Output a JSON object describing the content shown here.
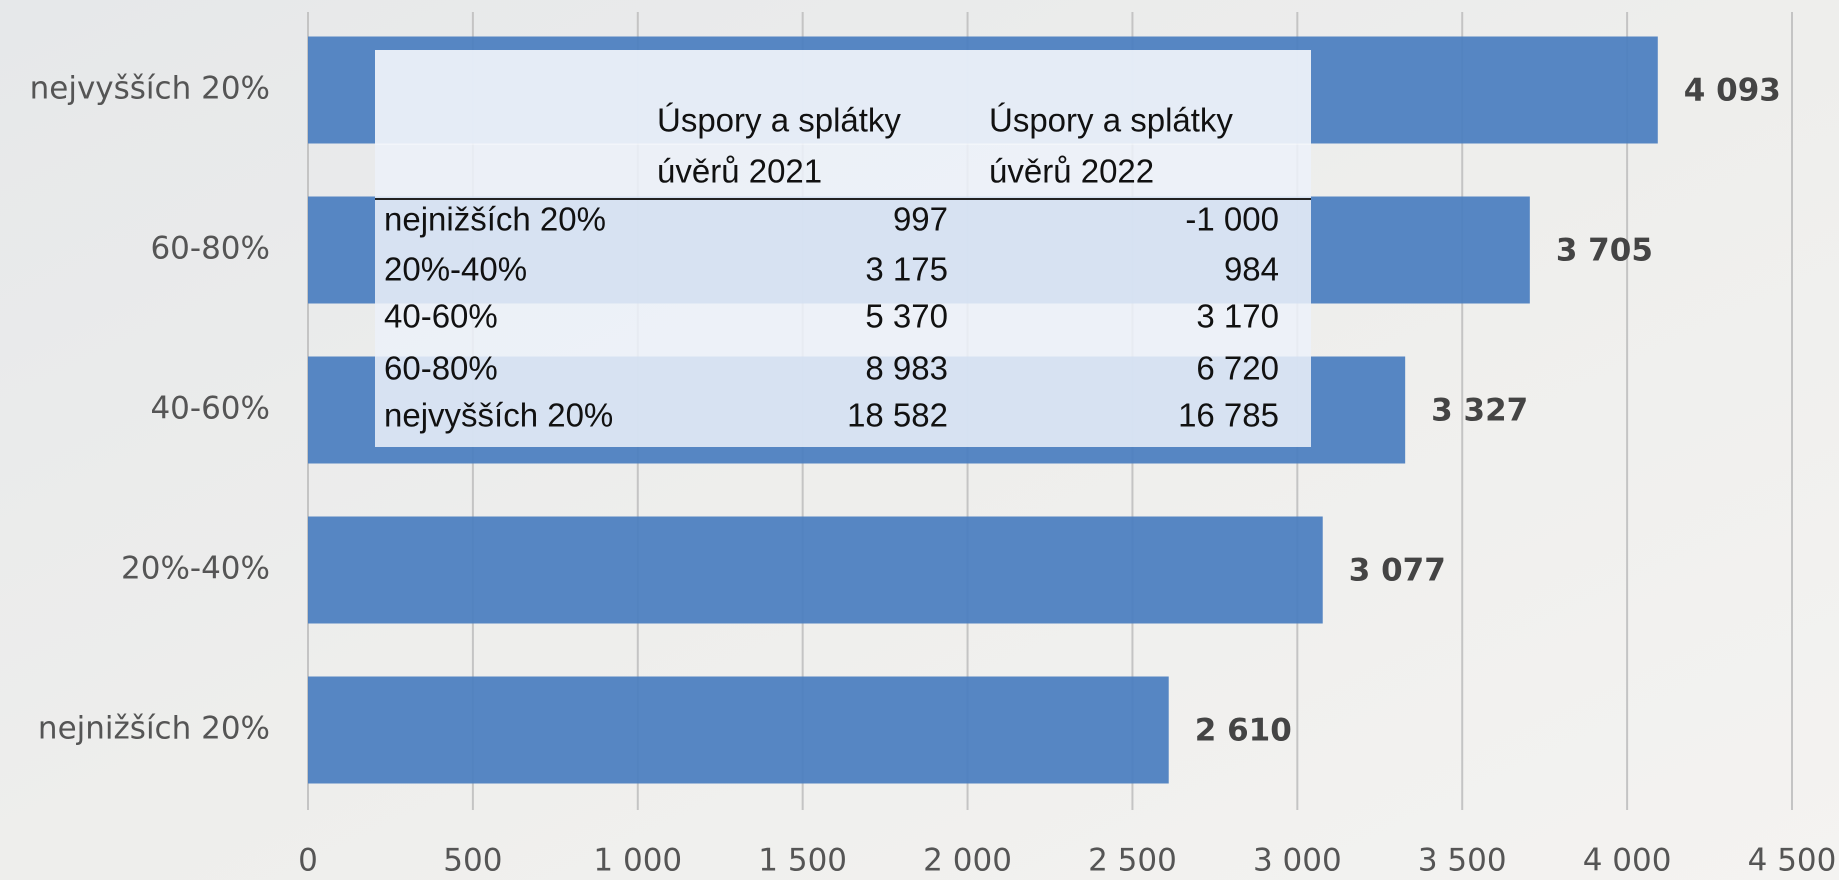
{
  "chart_data": {
    "type": "bar",
    "orientation": "horizontal",
    "categories": [
      "nejnižších 20%",
      "20%-40%",
      "40-60%",
      "60-80%",
      "nejvyšších 20%"
    ],
    "values": [
      2610,
      3077,
      3327,
      3705,
      4093
    ],
    "value_labels": [
      "2 610",
      "3 077",
      "3 327",
      "3 705",
      "4 093"
    ],
    "color": "#4a7ebf",
    "xlim": [
      0,
      4500
    ],
    "xticks": [
      0,
      500,
      {
        "value": 1000,
        "label": "1 000"
      },
      {
        "value": 1500,
        "label": "1 500"
      },
      {
        "value": 2000,
        "label": "2 000"
      },
      {
        "value": 2500,
        "label": "2 500"
      },
      {
        "value": 3000,
        "label": "3 000"
      },
      {
        "value": 3500,
        "label": "3 500"
      },
      {
        "value": 4000,
        "label": "4 000"
      },
      {
        "value": 4500,
        "label": "4 500"
      }
    ],
    "grid": true
  },
  "table": {
    "header": [
      [
        "Úspory a splátky",
        "úvěrů 2021"
      ],
      [
        "Úspory a splátky",
        "úvěrů 2022"
      ]
    ],
    "rows": [
      [
        "nejnižších 20%",
        "997",
        "-1 000"
      ],
      [
        "20%-40%",
        "3 175",
        "984"
      ],
      [
        "40-60%",
        "5 370",
        "3 170"
      ],
      [
        "60-80%",
        "8 983",
        "6 720"
      ],
      [
        "nejvyšších 20%",
        "18 582",
        "16 785"
      ]
    ]
  }
}
